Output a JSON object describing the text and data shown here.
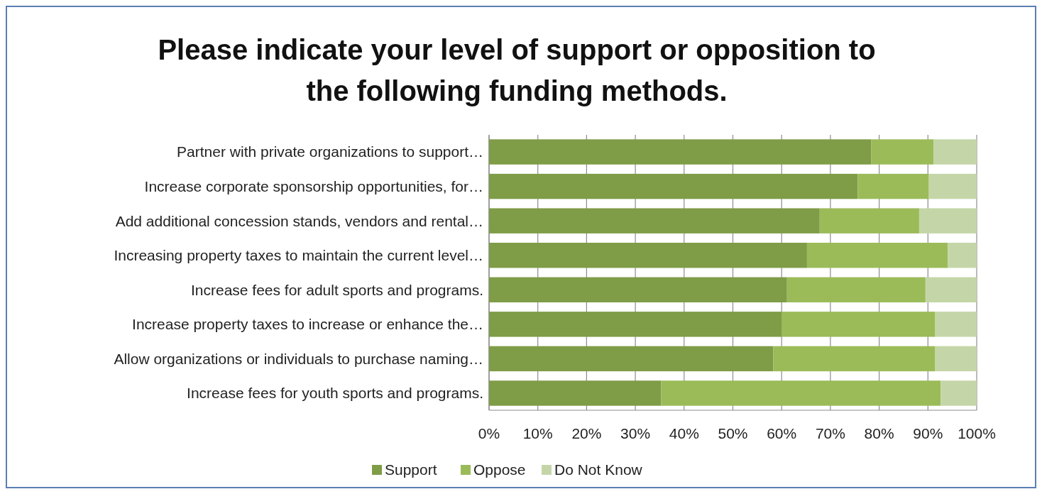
{
  "chart_data": {
    "type": "bar",
    "orientation": "horizontal",
    "stacked": true,
    "title": "Please indicate your level of support or opposition to the following funding methods.",
    "categories": [
      "Partner with private organizations to support…",
      "Increase corporate sponsorship opportunities, for…",
      "Add additional concession stands, vendors and rental…",
      "Increasing property taxes to maintain the current level…",
      "Increase fees for adult sports and programs.",
      "Increase property taxes to increase or enhance the…",
      "Allow organizations or individuals to purchase naming…",
      "Increase fees for youth sports and programs."
    ],
    "series": [
      {
        "name": "Support",
        "color": "#7f9c47",
        "values": [
          78.4,
          75.6,
          67.8,
          65.2,
          61.1,
          60.0,
          58.3,
          35.3
        ]
      },
      {
        "name": "Oppose",
        "color": "#9bbb59",
        "values": [
          12.8,
          14.6,
          20.4,
          28.9,
          28.4,
          31.5,
          33.2,
          57.3
        ]
      },
      {
        "name": "Do Not Know",
        "color": "#c4d6a8",
        "values": [
          8.8,
          9.8,
          11.8,
          5.9,
          10.5,
          8.5,
          8.5,
          7.4
        ]
      }
    ],
    "xlim": [
      0,
      100
    ],
    "xticks": [
      {
        "value": 0,
        "label": "0%"
      },
      {
        "value": 10,
        "label": "10%"
      },
      {
        "value": 20,
        "label": "20%"
      },
      {
        "value": 30,
        "label": "30%"
      },
      {
        "value": 40,
        "label": "40%"
      },
      {
        "value": 50,
        "label": "50%"
      },
      {
        "value": 60,
        "label": "60%"
      },
      {
        "value": 70,
        "label": "70%"
      },
      {
        "value": 80,
        "label": "80%"
      },
      {
        "value": 90,
        "label": "90%"
      },
      {
        "value": 100,
        "label": "100%"
      }
    ],
    "grid": "x",
    "legend": "bottom"
  }
}
